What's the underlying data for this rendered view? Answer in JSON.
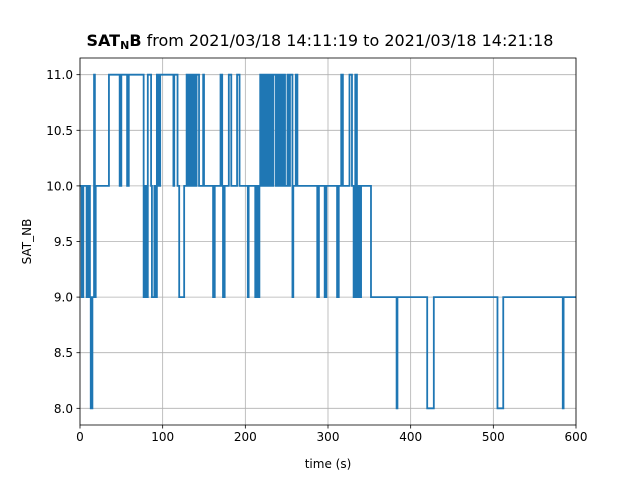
{
  "chart_data": {
    "type": "line",
    "title": {
      "bold_part": "SAT",
      "bold_subscript": "N",
      "bold_part2": "B",
      "rest": " from 2021/03/18 14:11:19 to 2021/03/18 14:21:18"
    },
    "xlabel": "time (s)",
    "ylabel": "SAT_NB",
    "xlim": [
      0,
      600
    ],
    "ylim": [
      7.85,
      11.15
    ],
    "xticks": [
      0,
      100,
      200,
      300,
      400,
      500,
      600
    ],
    "yticks": [
      8.0,
      8.5,
      9.0,
      9.5,
      10.0,
      10.5,
      11.0
    ],
    "xtick_labels": [
      "0",
      "100",
      "200",
      "300",
      "400",
      "500",
      "600"
    ],
    "ytick_labels": [
      "8.0",
      "8.5",
      "9.0",
      "9.5",
      "10.0",
      "10.5",
      "11.0"
    ],
    "grid": true,
    "line_color": "#1f77b4",
    "series": [
      {
        "step": "post",
        "x": [
          0,
          2,
          4,
          8,
          10,
          12,
          13,
          15,
          17,
          18,
          19,
          21,
          35,
          48,
          50,
          57,
          59,
          77,
          79,
          81,
          82,
          86,
          87,
          90,
          91,
          93,
          95,
          97,
          113,
          114,
          118,
          120,
          126,
          129,
          130,
          131,
          133,
          134,
          136,
          138,
          140,
          141,
          144,
          149,
          150,
          161,
          163,
          170,
          172,
          173,
          175,
          180,
          183,
          190,
          193,
          203,
          204,
          212,
          214,
          215,
          217,
          218,
          220,
          222,
          224,
          226,
          228,
          230,
          232,
          234,
          237,
          239,
          241,
          243,
          244,
          246,
          248,
          251,
          253,
          254,
          257,
          258,
          261,
          263,
          266,
          268,
          287,
          289,
          296,
          298,
          311,
          313,
          316,
          318,
          326,
          329,
          331,
          333,
          335,
          337,
          338,
          340,
          342,
          352,
          383,
          384,
          385,
          420,
          421,
          428,
          429,
          505,
          506,
          512,
          513,
          584,
          585,
          600
        ],
        "y": [
          10,
          9,
          10,
          9,
          10,
          9,
          8,
          9,
          11,
          9,
          10,
          10,
          11,
          10,
          11,
          10,
          11,
          9,
          10,
          9,
          11,
          10,
          9,
          10,
          9,
          11,
          10,
          11,
          10,
          11,
          10,
          9,
          10,
          11,
          10,
          11,
          10,
          11,
          10,
          11,
          10,
          11,
          10,
          11,
          10,
          9,
          10,
          11,
          10,
          9,
          10,
          11,
          10,
          11,
          10,
          9,
          10,
          9,
          10,
          9,
          10,
          11,
          10,
          11,
          10,
          11,
          10,
          11,
          10,
          11,
          10,
          11,
          10,
          11,
          10,
          11,
          10,
          11,
          10,
          11,
          9,
          10,
          11,
          10,
          10,
          10,
          9,
          10,
          9,
          10,
          9,
          10,
          11,
          10,
          11,
          10,
          9,
          11,
          9,
          10,
          9,
          10,
          10,
          9,
          8,
          9,
          9,
          8,
          8,
          9,
          9,
          8,
          8,
          9,
          9,
          8,
          9,
          9
        ]
      }
    ]
  }
}
